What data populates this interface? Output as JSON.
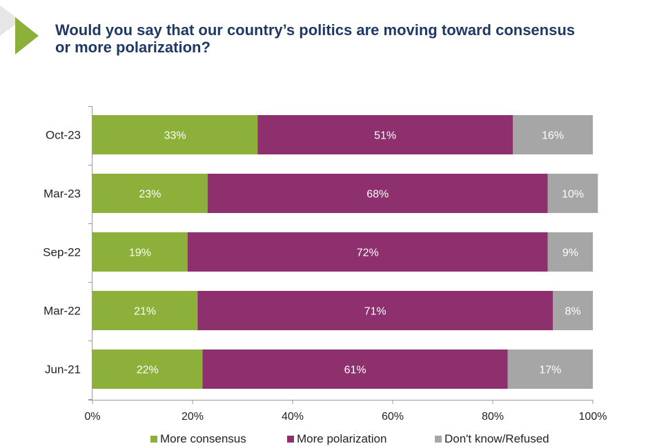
{
  "title": "Would you say that our country’s politics are moving toward consensus or more polarization?",
  "colors": {
    "title": "#1f3864",
    "accent": "#8cb03a",
    "consensus": "#8cb03a",
    "polarization": "#8e2f6e",
    "dontknow": "#a6a6a6"
  },
  "chart_data": {
    "type": "bar",
    "orientation": "horizontal",
    "stacked": true,
    "categories": [
      "Oct-23",
      "Mar-23",
      "Sep-22",
      "Mar-22",
      "Jun-21"
    ],
    "series": [
      {
        "name": "More consensus",
        "values": [
          33,
          23,
          19,
          21,
          22
        ],
        "labels": [
          "33%",
          "23%",
          "19%",
          "21%",
          "22%"
        ]
      },
      {
        "name": "More polarization",
        "values": [
          51,
          68,
          72,
          71,
          61
        ],
        "labels": [
          "51%",
          "68%",
          "72%",
          "71%",
          "61%"
        ]
      },
      {
        "name": "Don't know/Refused",
        "values": [
          16,
          10,
          9,
          8,
          17
        ],
        "labels": [
          "16%",
          "10%",
          "9%",
          "8%",
          "17%"
        ]
      }
    ],
    "xlim": [
      0,
      100
    ],
    "xticks": [
      "0%",
      "20%",
      "40%",
      "60%",
      "80%",
      "100%"
    ],
    "legend": "bottom",
    "grid": false
  }
}
